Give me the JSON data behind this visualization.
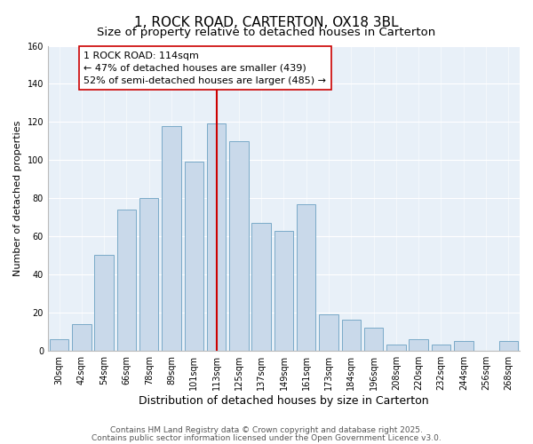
{
  "title": "1, ROCK ROAD, CARTERTON, OX18 3BL",
  "subtitle": "Size of property relative to detached houses in Carterton",
  "xlabel": "Distribution of detached houses by size in Carterton",
  "ylabel": "Number of detached properties",
  "bar_labels": [
    "30sqm",
    "42sqm",
    "54sqm",
    "66sqm",
    "78sqm",
    "89sqm",
    "101sqm",
    "113sqm",
    "125sqm",
    "137sqm",
    "149sqm",
    "161sqm",
    "173sqm",
    "184sqm",
    "196sqm",
    "208sqm",
    "220sqm",
    "232sqm",
    "244sqm",
    "256sqm",
    "268sqm"
  ],
  "bar_values": [
    6,
    14,
    50,
    74,
    80,
    118,
    99,
    119,
    110,
    67,
    63,
    77,
    19,
    16,
    12,
    3,
    6,
    3,
    5,
    0,
    5
  ],
  "bar_color": "#c9d9ea",
  "bar_edge_color": "#7aaac8",
  "ylim": [
    0,
    160
  ],
  "yticks": [
    0,
    20,
    40,
    60,
    80,
    100,
    120,
    140,
    160
  ],
  "vline_x_index": 7,
  "vline_color": "#cc0000",
  "annotation_title": "1 ROCK ROAD: 114sqm",
  "annotation_line1": "← 47% of detached houses are smaller (439)",
  "annotation_line2": "52% of semi-detached houses are larger (485) →",
  "footer1": "Contains HM Land Registry data © Crown copyright and database right 2025.",
  "footer2": "Contains public sector information licensed under the Open Government Licence v3.0.",
  "background_color": "#ffffff",
  "plot_background_color": "#e8f0f8",
  "title_fontsize": 11,
  "subtitle_fontsize": 9.5,
  "xlabel_fontsize": 9,
  "ylabel_fontsize": 8,
  "tick_fontsize": 7,
  "footer_fontsize": 6.5,
  "annotation_fontsize": 8
}
